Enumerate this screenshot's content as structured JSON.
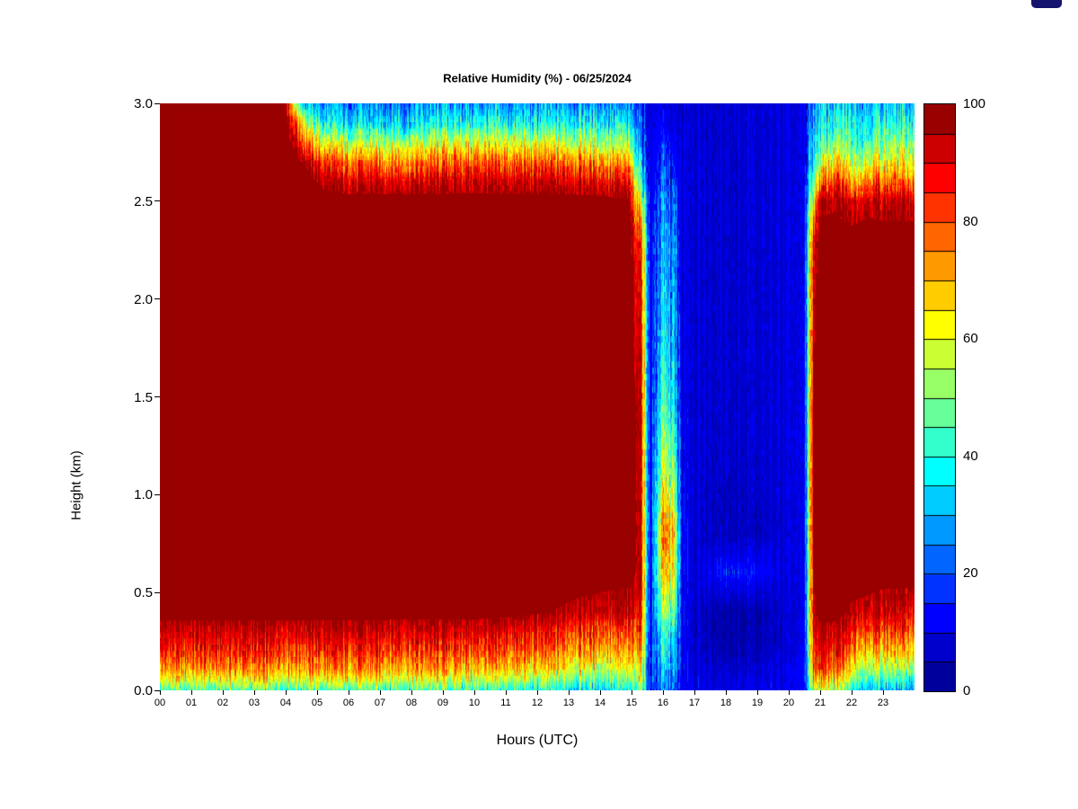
{
  "title": "Relative Humidity (%) - 06/25/2024",
  "axes": {
    "xlabel": "Hours (UTC)",
    "ylabel": "Height (km)",
    "x_tick_labels": [
      "00",
      "01",
      "02",
      "03",
      "04",
      "05",
      "06",
      "07",
      "08",
      "09",
      "10",
      "11",
      "12",
      "13",
      "14",
      "15",
      "16",
      "17",
      "18",
      "19",
      "20",
      "21",
      "22",
      "23"
    ],
    "y_tick_labels": [
      "0.0",
      "0.5",
      "1.0",
      "1.5",
      "2.0",
      "2.5",
      "3.0"
    ]
  },
  "colorbar": {
    "tick_labels": [
      "0",
      "20",
      "40",
      "60",
      "80",
      "100"
    ],
    "levels": 20,
    "min": 0,
    "max": 100
  },
  "decoration": {
    "top_right_swatch_color": "#14146e"
  },
  "chart_data": {
    "type": "heatmap",
    "title": "Relative Humidity (%) - 06/25/2024",
    "xlabel": "Hours (UTC)",
    "ylabel": "Height (km)",
    "xlim": [
      0,
      24
    ],
    "ylim": [
      0,
      3
    ],
    "zlim": [
      0,
      100
    ],
    "legend_position": "right-colorbar",
    "grid": false,
    "x_hours": [
      0,
      2,
      4,
      4.3,
      4.7,
      5.2,
      6,
      7,
      8,
      9,
      10,
      11,
      12,
      13,
      14,
      14.9,
      15.3,
      15.6,
      16,
      16.3,
      16.6,
      17,
      18,
      19,
      20,
      20.5,
      20.8,
      21,
      21.5,
      22,
      22.5,
      23,
      24
    ],
    "y_km": [
      0,
      0.05,
      0.1,
      0.2,
      0.3,
      0.4,
      0.6,
      0.8,
      1.0,
      1.5,
      2.0,
      2.3,
      2.5,
      2.6,
      2.7,
      2.8,
      2.9,
      3.0
    ],
    "values_layout": "values[time_index][height_index]; heights ascending bottom-to-top; units % RH",
    "values": [
      [
        45,
        60,
        72,
        85,
        93,
        100,
        100,
        100,
        100,
        100,
        100,
        100,
        100,
        100,
        100,
        100,
        100,
        100
      ],
      [
        45,
        60,
        72,
        85,
        93,
        100,
        100,
        100,
        100,
        100,
        100,
        100,
        100,
        100,
        100,
        100,
        100,
        100
      ],
      [
        45,
        60,
        72,
        85,
        93,
        100,
        100,
        100,
        100,
        100,
        100,
        100,
        100,
        100,
        100,
        100,
        100,
        100
      ],
      [
        45,
        60,
        72,
        85,
        93,
        100,
        100,
        100,
        100,
        100,
        100,
        100,
        100,
        100,
        100,
        95,
        85,
        55
      ],
      [
        45,
        60,
        72,
        85,
        93,
        100,
        100,
        100,
        100,
        100,
        100,
        100,
        100,
        100,
        95,
        75,
        50,
        30
      ],
      [
        45,
        60,
        72,
        85,
        93,
        100,
        100,
        100,
        100,
        100,
        100,
        100,
        100,
        95,
        82,
        60,
        38,
        25
      ],
      [
        45,
        60,
        72,
        85,
        93,
        100,
        100,
        100,
        100,
        100,
        100,
        100,
        100,
        92,
        78,
        55,
        35,
        25
      ],
      [
        45,
        60,
        72,
        85,
        93,
        100,
        100,
        100,
        100,
        100,
        100,
        100,
        100,
        92,
        76,
        55,
        35,
        25
      ],
      [
        45,
        58,
        70,
        84,
        92,
        100,
        100,
        100,
        100,
        100,
        100,
        100,
        100,
        92,
        76,
        55,
        35,
        25
      ],
      [
        45,
        58,
        70,
        84,
        92,
        100,
        100,
        100,
        100,
        100,
        100,
        100,
        100,
        92,
        78,
        58,
        38,
        25
      ],
      [
        42,
        56,
        68,
        82,
        92,
        100,
        100,
        100,
        100,
        100,
        100,
        100,
        100,
        93,
        80,
        60,
        40,
        28
      ],
      [
        42,
        55,
        66,
        80,
        90,
        100,
        100,
        100,
        100,
        100,
        100,
        100,
        100,
        92,
        78,
        58,
        38,
        26
      ],
      [
        40,
        52,
        64,
        78,
        88,
        98,
        100,
        100,
        100,
        100,
        100,
        100,
        100,
        92,
        78,
        58,
        38,
        26
      ],
      [
        38,
        50,
        62,
        75,
        85,
        96,
        100,
        100,
        100,
        100,
        100,
        100,
        100,
        92,
        78,
        58,
        40,
        28
      ],
      [
        36,
        46,
        58,
        72,
        82,
        94,
        100,
        100,
        100,
        100,
        100,
        100,
        100,
        90,
        75,
        55,
        38,
        26
      ],
      [
        35,
        45,
        55,
        68,
        80,
        92,
        100,
        100,
        100,
        100,
        100,
        100,
        98,
        88,
        70,
        50,
        35,
        25
      ],
      [
        55,
        60,
        65,
        75,
        85,
        90,
        95,
        95,
        95,
        95,
        90,
        85,
        60,
        45,
        35,
        28,
        22,
        18
      ],
      [
        15,
        14,
        13,
        12,
        11,
        10,
        9,
        9,
        9,
        9,
        9,
        9,
        9,
        9,
        9,
        9,
        8,
        8
      ],
      [
        25,
        27,
        30,
        36,
        42,
        52,
        65,
        72,
        62,
        40,
        32,
        28,
        25,
        20,
        17,
        14,
        12,
        10
      ],
      [
        22,
        24,
        27,
        33,
        40,
        50,
        68,
        75,
        60,
        38,
        30,
        26,
        22,
        18,
        15,
        13,
        11,
        9
      ],
      [
        12,
        12,
        12,
        12,
        12,
        12,
        13,
        13,
        12,
        10,
        9,
        9,
        9,
        9,
        8,
        8,
        8,
        8
      ],
      [
        10,
        10,
        9,
        8,
        7,
        7,
        8,
        8,
        8,
        8,
        8,
        8,
        8,
        8,
        8,
        8,
        8,
        8
      ],
      [
        10,
        9,
        8,
        5,
        4,
        4,
        15,
        6,
        7,
        8,
        8,
        8,
        8,
        8,
        8,
        8,
        8,
        8
      ],
      [
        10,
        9,
        8,
        5,
        4,
        4,
        13,
        6,
        7,
        8,
        8,
        8,
        8,
        8,
        8,
        8,
        8,
        8
      ],
      [
        11,
        10,
        10,
        9,
        8,
        8,
        9,
        9,
        9,
        9,
        9,
        9,
        9,
        9,
        9,
        9,
        9,
        9
      ],
      [
        12,
        12,
        12,
        11,
        10,
        10,
        10,
        10,
        10,
        10,
        10,
        10,
        10,
        10,
        10,
        10,
        10,
        10
      ],
      [
        60,
        70,
        80,
        88,
        92,
        95,
        97,
        98,
        98,
        98,
        95,
        90,
        70,
        50,
        40,
        35,
        32,
        30
      ],
      [
        60,
        70,
        82,
        90,
        95,
        100,
        100,
        100,
        100,
        100,
        100,
        100,
        95,
        75,
        55,
        42,
        36,
        32
      ],
      [
        55,
        65,
        78,
        88,
        94,
        100,
        100,
        100,
        100,
        100,
        100,
        100,
        96,
        85,
        68,
        50,
        40,
        34
      ],
      [
        42,
        52,
        64,
        78,
        88,
        96,
        100,
        100,
        100,
        100,
        100,
        100,
        92,
        72,
        56,
        45,
        40,
        34
      ],
      [
        36,
        46,
        56,
        72,
        85,
        95,
        100,
        100,
        100,
        100,
        100,
        100,
        95,
        80,
        62,
        48,
        40,
        33
      ],
      [
        32,
        42,
        54,
        70,
        82,
        93,
        100,
        100,
        100,
        100,
        100,
        100,
        94,
        78,
        62,
        50,
        40,
        32
      ],
      [
        30,
        40,
        52,
        68,
        80,
        92,
        100,
        100,
        100,
        100,
        100,
        100,
        94,
        78,
        62,
        50,
        40,
        32
      ]
    ],
    "colormap": {
      "name": "jet",
      "stops": [
        [
          0,
          "#000083"
        ],
        [
          0.125,
          "#0000ff"
        ],
        [
          0.375,
          "#00ffff"
        ],
        [
          0.625,
          "#ffff00"
        ],
        [
          0.875,
          "#ff0000"
        ],
        [
          1,
          "#800000"
        ]
      ]
    }
  }
}
